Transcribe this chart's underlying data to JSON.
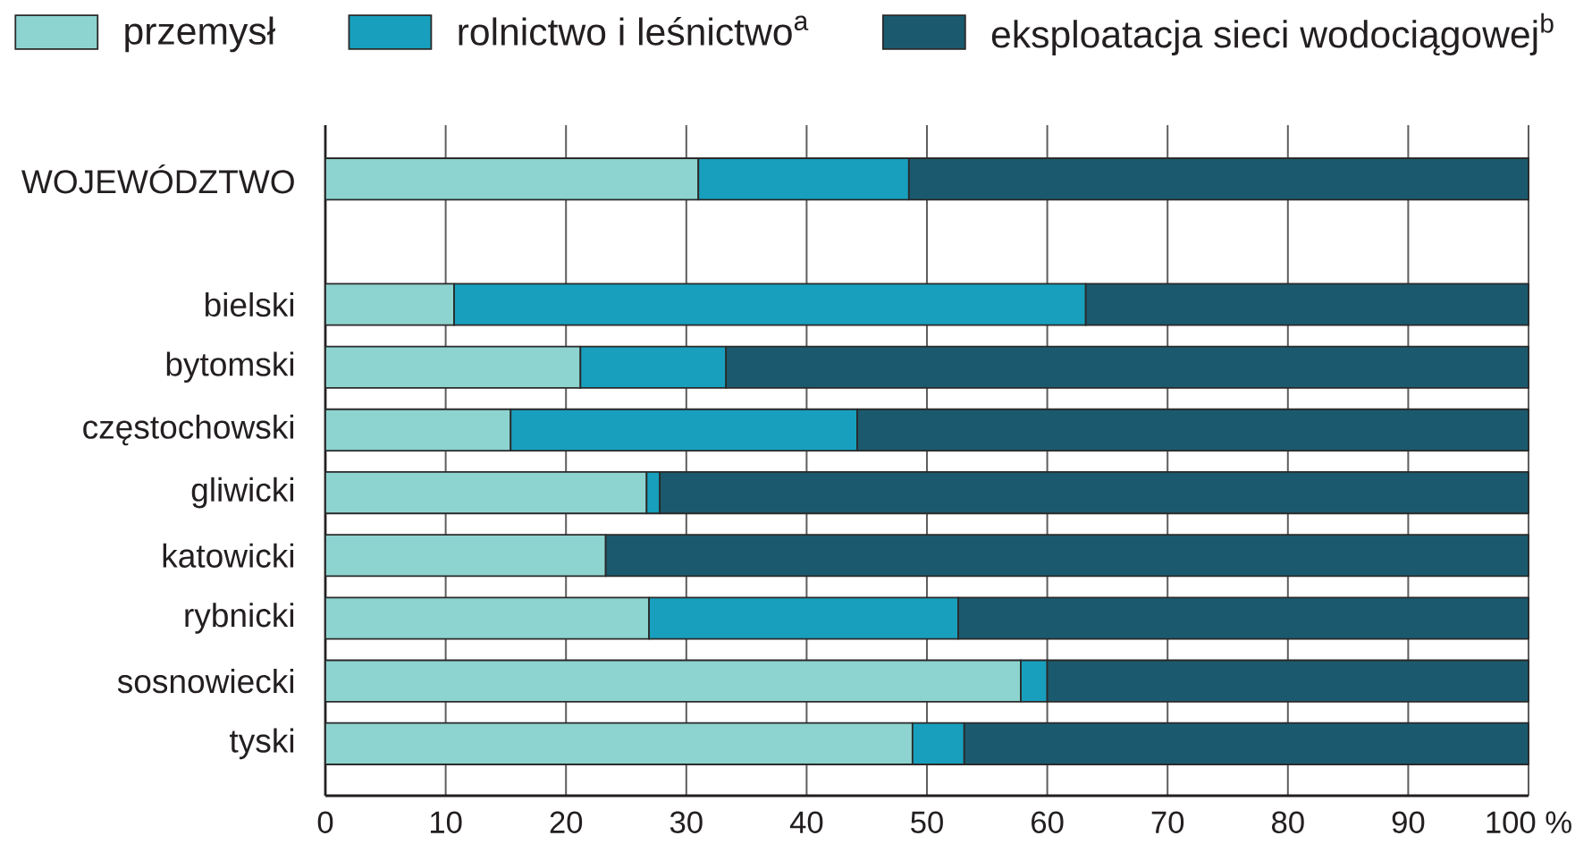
{
  "chart_data": {
    "type": "bar",
    "orientation": "horizontal",
    "stacked": true,
    "categories": [
      "WOJEWÓDZTWO",
      null,
      "bielski",
      "bytomski",
      "częstochowski",
      "gliwicki",
      "katowicki",
      "rybnicki",
      "sosnowiecki",
      "tyski"
    ],
    "series": [
      {
        "name": "przemysł",
        "color": "#8dd3cf",
        "values": [
          31.0,
          null,
          10.7,
          21.2,
          15.4,
          26.7,
          23.3,
          26.9,
          57.8,
          48.8
        ]
      },
      {
        "name": "rolnictwo i leśnictwo$^{a}$",
        "color": "#189fbd",
        "values": [
          17.5,
          null,
          52.5,
          12.1,
          28.8,
          1.1,
          0,
          25.7,
          2.2,
          4.3
        ]
      },
      {
        "name": "eksploatacja sieci wodociągowej$^{b}$",
        "color": "#1b5a6e",
        "values": [
          51.5,
          null,
          36.8,
          66.7,
          55.8,
          72.2,
          76.7,
          47.4,
          40.0,
          46.9
        ]
      }
    ],
    "xlim": [
      0,
      100
    ],
    "xticks": [
      0,
      10,
      20,
      30,
      40,
      50,
      60,
      70,
      80,
      90,
      {
        "value": 100,
        "label": "100 %"
      }
    ],
    "grid": "x",
    "legend": "top"
  }
}
